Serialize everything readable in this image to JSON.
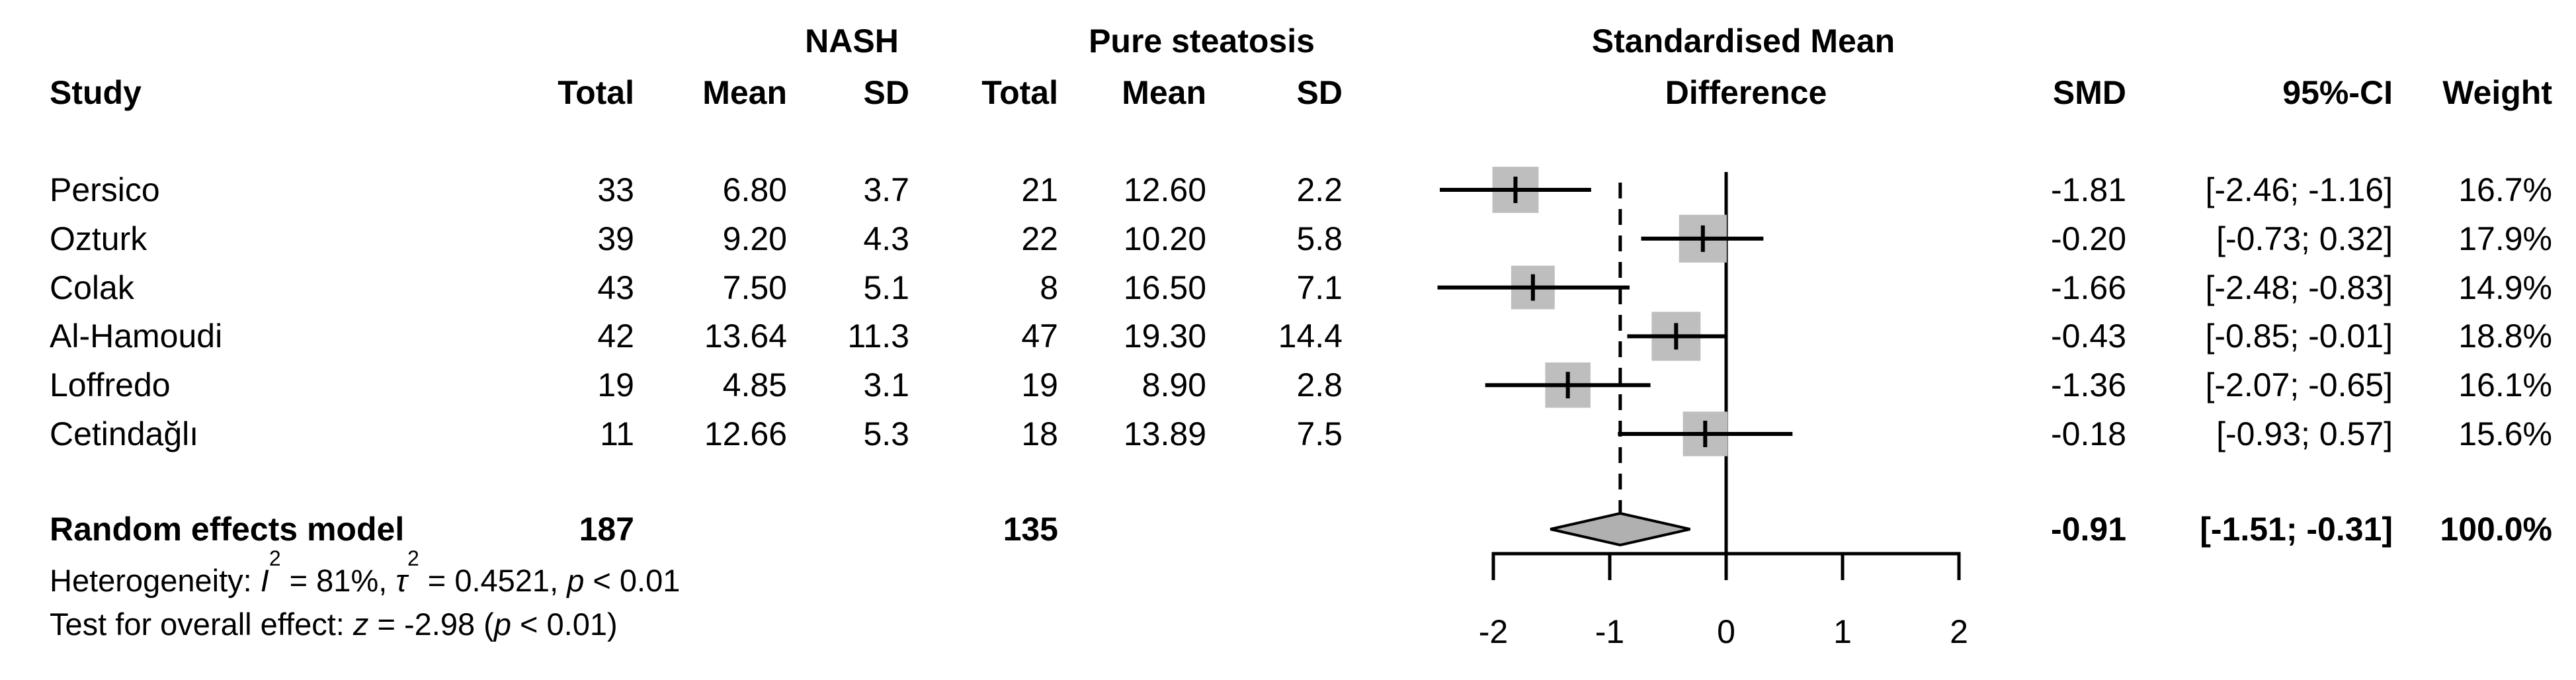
{
  "header": {
    "study": "Study",
    "group1_name": "NASH",
    "group2_name": "Pure steatosis",
    "col_total1": "Total",
    "col_mean1": "Mean",
    "col_sd1": "SD",
    "col_total2": "Total",
    "col_mean2": "Mean",
    "col_sd2": "SD",
    "plot_title_line1": "Standardised Mean",
    "plot_title_line2": "Difference",
    "col_smd": "SMD",
    "col_ci": "95%-CI",
    "col_weight": "Weight"
  },
  "chart_data": {
    "type": "forest",
    "title": "Standardised Mean Difference",
    "effect_measure": "SMD",
    "axis": {
      "tick_labels": [
        "-2",
        "-1",
        "0",
        "1",
        "2"
      ],
      "tick_values": [
        -2,
        -1,
        0,
        1,
        2
      ],
      "xlim": [
        -2,
        2
      ],
      "zero_line": 0,
      "pooled_dashed_line": -0.91
    },
    "studies": [
      {
        "name": "Persico",
        "nash": {
          "total": "33",
          "mean": "6.80",
          "sd": "3.7"
        },
        "steatosis": {
          "total": "21",
          "mean": "12.60",
          "sd": "2.2"
        },
        "smd": -1.81,
        "ci": [
          -2.46,
          -1.16
        ],
        "smd_label": "-1.81",
        "ci_label": "[-2.46; -1.16]",
        "weight": 16.7,
        "weight_label": "16.7%"
      },
      {
        "name": "Ozturk",
        "nash": {
          "total": "39",
          "mean": "9.20",
          "sd": "4.3"
        },
        "steatosis": {
          "total": "22",
          "mean": "10.20",
          "sd": "5.8"
        },
        "smd": -0.2,
        "ci": [
          -0.73,
          0.32
        ],
        "smd_label": "-0.20",
        "ci_label": "[-0.73; 0.32]",
        "weight": 17.9,
        "weight_label": "17.9%"
      },
      {
        "name": "Colak",
        "nash": {
          "total": "43",
          "mean": "7.50",
          "sd": "5.1"
        },
        "steatosis": {
          "total": "8",
          "mean": "16.50",
          "sd": "7.1"
        },
        "smd": -1.66,
        "ci": [
          -2.48,
          -0.83
        ],
        "smd_label": "-1.66",
        "ci_label": "[-2.48; -0.83]",
        "weight": 14.9,
        "weight_label": "14.9%"
      },
      {
        "name": "Al-Hamoudi",
        "nash": {
          "total": "42",
          "mean": "13.64",
          "sd": "11.3"
        },
        "steatosis": {
          "total": "47",
          "mean": "19.30",
          "sd": "14.4"
        },
        "smd": -0.43,
        "ci": [
          -0.85,
          -0.01
        ],
        "smd_label": "-0.43",
        "ci_label": "[-0.85; -0.01]",
        "weight": 18.8,
        "weight_label": "18.8%"
      },
      {
        "name": "Loffredo",
        "nash": {
          "total": "19",
          "mean": "4.85",
          "sd": "3.1"
        },
        "steatosis": {
          "total": "19",
          "mean": "8.90",
          "sd": "2.8"
        },
        "smd": -1.36,
        "ci": [
          -2.07,
          -0.65
        ],
        "smd_label": "-1.36",
        "ci_label": "[-2.07; -0.65]",
        "weight": 16.1,
        "weight_label": "16.1%"
      },
      {
        "name": "Cetindağlı",
        "nash": {
          "total": "11",
          "mean": "12.66",
          "sd": "5.3"
        },
        "steatosis": {
          "total": "18",
          "mean": "13.89",
          "sd": "7.5"
        },
        "smd": -0.18,
        "ci": [
          -0.93,
          0.57
        ],
        "smd_label": "-0.18",
        "ci_label": "[-0.93; 0.57]",
        "weight": 15.6,
        "weight_label": "15.6%"
      }
    ],
    "pooled": {
      "label": "Random effects model",
      "nash_total": "187",
      "steatosis_total": "135",
      "smd": -0.91,
      "ci": [
        -1.51,
        -0.31
      ],
      "smd_label": "-0.91",
      "ci_label": "[-1.51; -0.31]",
      "weight_label": "100.0%"
    },
    "heterogeneity_stats": {
      "I2_pct": 81,
      "tau2": 0.4521,
      "p": "< 0.01"
    },
    "overall_effect_test": {
      "z": -2.98,
      "p": "< 0.01"
    }
  },
  "footnotes": {
    "het_prefix": "Heterogeneity: ",
    "het_i_sym": "I",
    "het_i_sup": "2",
    "het_seg1": " = 81%, ",
    "het_tau_sym": "τ",
    "het_tau_sup": "2",
    "het_seg2": " = 0.4521, ",
    "het_p_sym": "p",
    "het_seg3": " < 0.01",
    "test_prefix": "Test for overall effect: ",
    "test_z_sym": "z",
    "test_seg1": " = -2.98 (",
    "test_p_sym": "p",
    "test_seg2": " < 0.01)"
  },
  "colors": {
    "square": "#bebebe",
    "diamond_fill": "#b0b0b0",
    "line": "#000000",
    "text": "#000000"
  }
}
